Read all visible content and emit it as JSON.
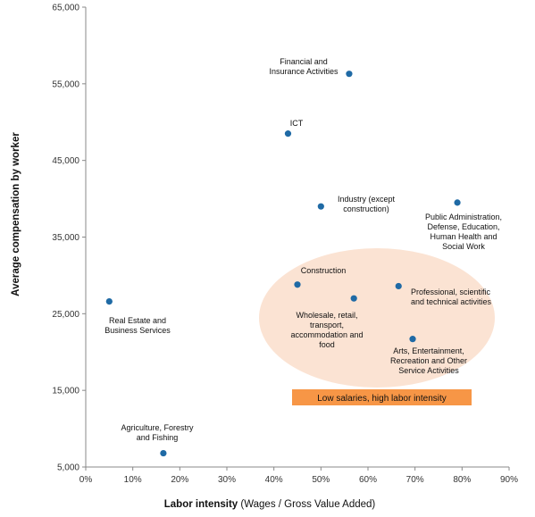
{
  "chart_data": {
    "type": "scatter",
    "xlabel_bold": "Labor intensity",
    "xlabel_rest": " (Wages / Gross Value Added)",
    "ylabel": "Average compensation by worker",
    "xlim": [
      0,
      0.9
    ],
    "ylim": [
      5000,
      65000
    ],
    "x_ticks": [
      "0%",
      "10%",
      "20%",
      "30%",
      "40%",
      "50%",
      "60%",
      "70%",
      "80%",
      "90%"
    ],
    "y_ticks": [
      "5,000",
      "15,000",
      "25,000",
      "35,000",
      "45,000",
      "55,000",
      "65,000"
    ],
    "grid": false,
    "point_color": "#1f6aa5",
    "points": [
      {
        "label": [
          "Financial and",
          "Insurance Activities"
        ],
        "x": 0.56,
        "y": 56300
      },
      {
        "label": [
          "ICT"
        ],
        "x": 0.43,
        "y": 48500
      },
      {
        "label": [
          "Industry (except",
          "construction)"
        ],
        "x": 0.5,
        "y": 39000
      },
      {
        "label": [
          "Public Administration,",
          "Defense, Education,",
          "Human Health and",
          "Social Work"
        ],
        "x": 0.79,
        "y": 39500
      },
      {
        "label": [
          "Construction"
        ],
        "x": 0.45,
        "y": 28800
      },
      {
        "label": [
          "Wholesale, retail,",
          "transport,",
          "accommodation and",
          "food"
        ],
        "x": 0.57,
        "y": 27000
      },
      {
        "label": [
          "Professional, scientific",
          "and technical activities"
        ],
        "x": 0.665,
        "y": 28600
      },
      {
        "label": [
          "Arts, Entertainment,",
          "Recreation and Other",
          "Service Activities"
        ],
        "x": 0.695,
        "y": 21700
      },
      {
        "label": [
          "Real Estate and",
          "Business Services"
        ],
        "x": 0.05,
        "y": 26600
      },
      {
        "label": [
          "Agriculture, Forestry",
          "and Fishing"
        ],
        "x": 0.165,
        "y": 6800
      }
    ],
    "highlight": {
      "label": "Low salaries, high labor intensity",
      "ellipse_color": "#fbe3d3",
      "banner_color": "#f79646"
    }
  }
}
